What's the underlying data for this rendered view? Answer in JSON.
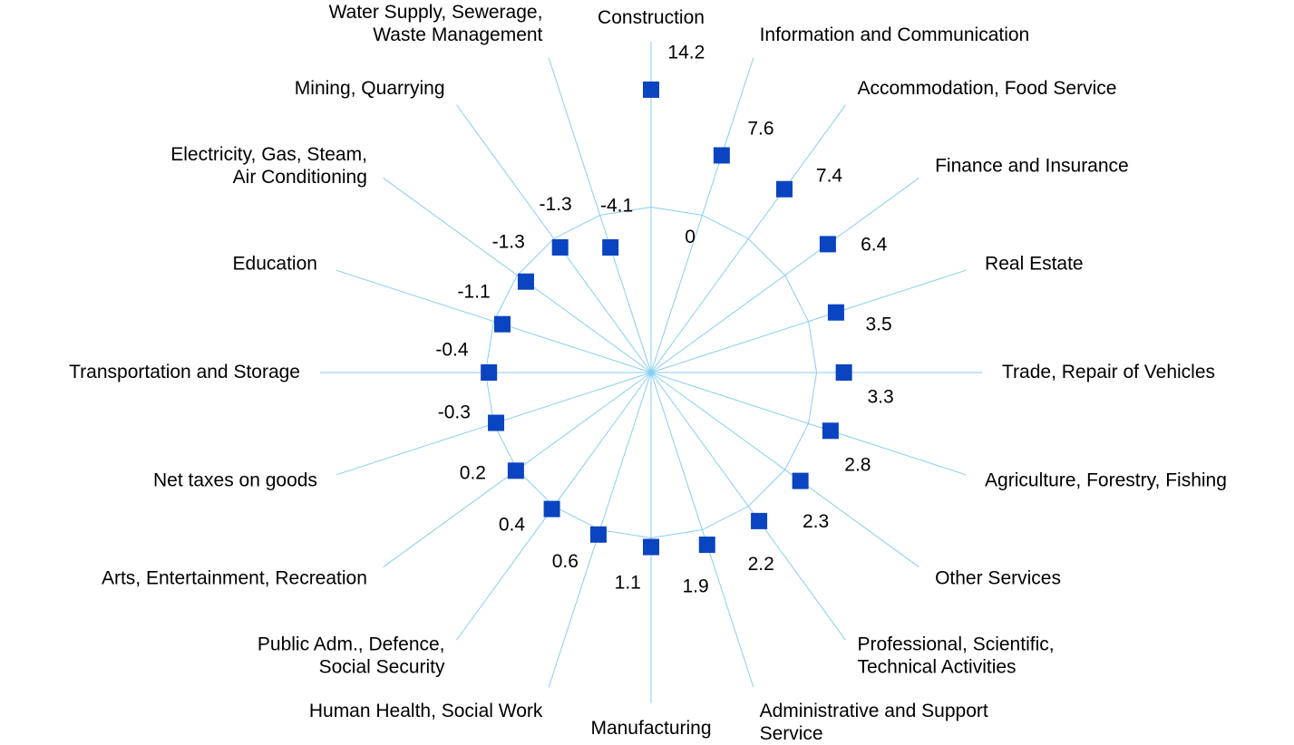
{
  "chart_data": {
    "type": "radar",
    "categories": [
      "Construction",
      "Information and Communication",
      "Accommodation, Food Service",
      "Finance and Insurance",
      "Real Estate",
      "Trade, Repair of  Vehicles",
      "Agriculture, Forestry, Fishing",
      "Other Services",
      "Professional, Scientific,\nTechnical Activities",
      "Administrative and Support\nService",
      "Manufacturing",
      "Human Health, Social Work",
      "Public Adm., Defence,\nSocial Security",
      "Arts, Entertainment, Recreation",
      "Net taxes on goods",
      "Transportation and Storage",
      "Education",
      "Electricity, Gas, Steam,\nAir Conditioning",
      "Mining, Quarrying",
      "Water Supply, Sewerage,\nWaste Management"
    ],
    "values": [
      14.2,
      7.6,
      7.4,
      6.4,
      3.5,
      3.3,
      2.8,
      2.3,
      2.2,
      1.9,
      1.1,
      0.6,
      0.4,
      0.2,
      -0.3,
      -0.4,
      -1.1,
      -1.3,
      -1.3,
      -4.1
    ],
    "color": "#0a44c0",
    "grid_color": "#87cef0",
    "ylim": [
      -20,
      20
    ],
    "yticks": [
      0
    ],
    "grid": true
  }
}
